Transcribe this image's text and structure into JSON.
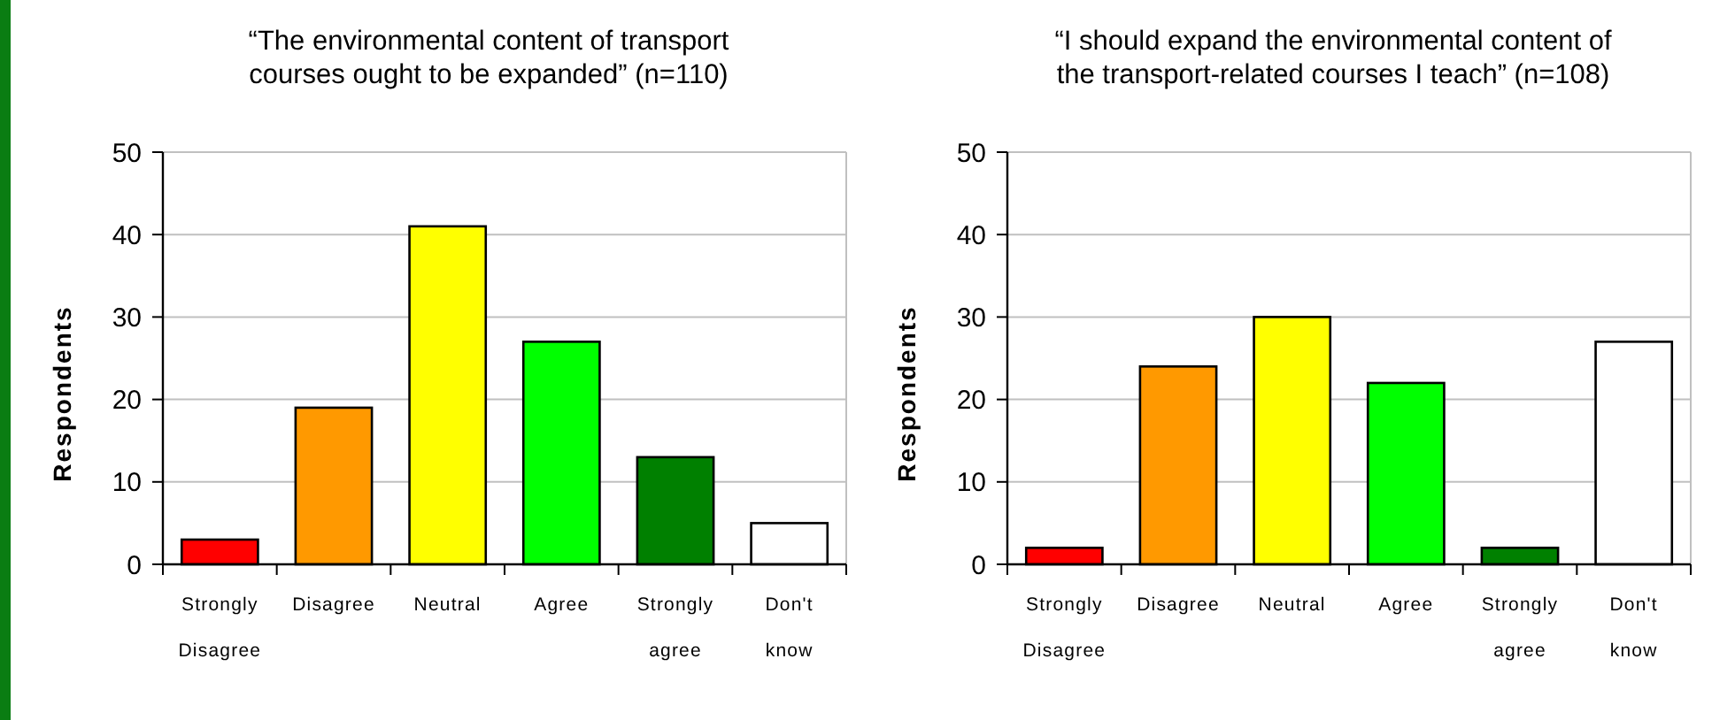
{
  "chart_data": [
    {
      "type": "bar",
      "title": "“The environmental content of transport courses ought to be expanded” (n=110)",
      "ylabel": "Respondents",
      "categories": [
        "Strongly Disagree",
        "Disagree",
        "Neutral",
        "Agree",
        "Strongly agree",
        "Don't know"
      ],
      "values": [
        3,
        19,
        41,
        27,
        13,
        5
      ],
      "colors": [
        "#ff0000",
        "#ff9900",
        "#ffff00",
        "#00ff00",
        "#008000",
        "#ffffff"
      ],
      "ylim": [
        0,
        50
      ],
      "yticks": [
        0,
        10,
        20,
        30,
        40,
        50
      ],
      "grid": "y"
    },
    {
      "type": "bar",
      "title": "“I should expand the environmental content of the transport-related courses I teach” (n=108)",
      "ylabel": "Respondents",
      "categories": [
        "Strongly Disagree",
        "Disagree",
        "Neutral",
        "Agree",
        "Strongly agree",
        "Don't know"
      ],
      "values": [
        2,
        24,
        30,
        22,
        2,
        27
      ],
      "colors": [
        "#ff0000",
        "#ff9900",
        "#ffff00",
        "#00ff00",
        "#008000",
        "#ffffff"
      ],
      "ylim": [
        0,
        50
      ],
      "yticks": [
        0,
        10,
        20,
        30,
        40,
        50
      ],
      "grid": "y"
    }
  ]
}
